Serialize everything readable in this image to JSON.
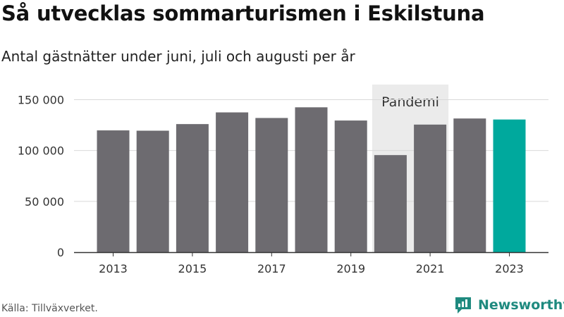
{
  "chart_data": {
    "type": "bar",
    "title": "Så utvecklas sommarturismen i Eskilstuna",
    "subtitle": "Antal gästnätter under juni, juli och augusti per år",
    "categories": [
      "2013",
      "2014",
      "2015",
      "2016",
      "2017",
      "2018",
      "2019",
      "2020",
      "2021",
      "2022",
      "2023"
    ],
    "values": [
      119800,
      119500,
      126000,
      137500,
      132000,
      142500,
      129500,
      95500,
      125500,
      131500,
      130500
    ],
    "x_tick_labels": [
      "2013",
      "2015",
      "2017",
      "2019",
      "2021",
      "2023"
    ],
    "y_ticks": [
      0,
      50000,
      100000,
      150000
    ],
    "y_tick_labels": [
      "0",
      "50 000",
      "100 000",
      "150 000"
    ],
    "ylim": [
      0,
      160000
    ],
    "grid": true,
    "bar_color": "#6d6b70",
    "highlight_color": "#00a99d",
    "highlight_category": "2023",
    "annotation": {
      "label": "Pandemi",
      "range": [
        "2020",
        "2021"
      ],
      "color": "#ebebeb"
    },
    "xlabel": "",
    "ylabel": ""
  },
  "source": "Källa: Tillväxverket.",
  "brand": {
    "name": "Newsworthy",
    "color": "#1f8a7f"
  }
}
